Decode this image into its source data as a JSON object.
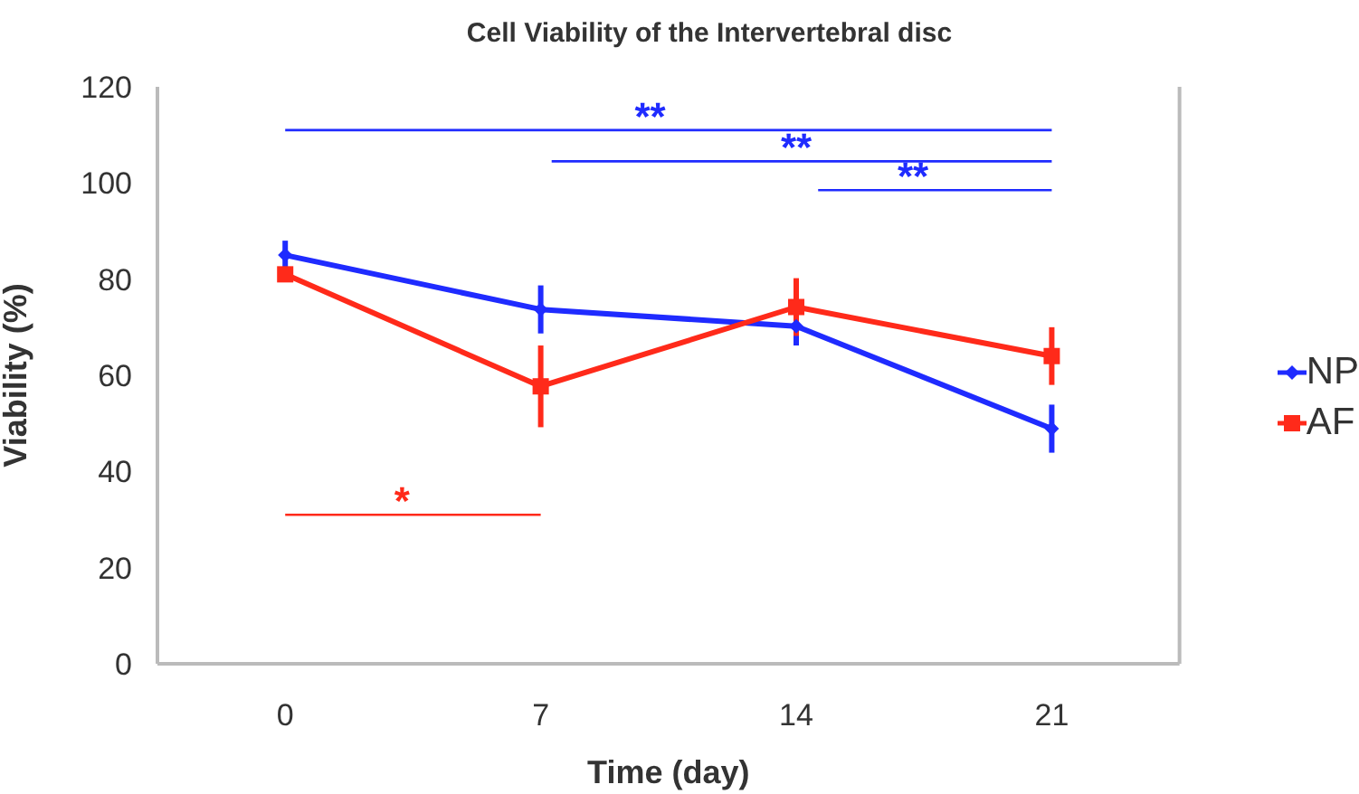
{
  "chart_data": {
    "type": "line",
    "title": "Cell Viability of the Intervertebral disc",
    "xlabel": "Time (day)",
    "ylabel": "Viability (%)",
    "x": [
      0,
      7,
      14,
      21
    ],
    "xlim": [
      -3.5,
      24.5
    ],
    "xticks": [
      0,
      7,
      14,
      21
    ],
    "ylim": [
      0,
      120
    ],
    "yticks": [
      0,
      20,
      40,
      60,
      80,
      100,
      120
    ],
    "series": [
      {
        "name": "NP",
        "color": "#1f2bff",
        "marker": "diamond",
        "values": [
          85,
          73.7,
          70.2,
          48.9
        ],
        "errors": [
          3,
          5,
          4,
          5
        ]
      },
      {
        "name": "AF",
        "color": "#ff2a1a",
        "marker": "square",
        "values": [
          81,
          57.7,
          74.2,
          64
        ],
        "errors": [
          1,
          8.5,
          6,
          6
        ]
      }
    ],
    "annotations": [
      "**",
      "**",
      "**",
      "*"
    ],
    "legend": "right",
    "grid": false,
    "line_style": "solid"
  }
}
